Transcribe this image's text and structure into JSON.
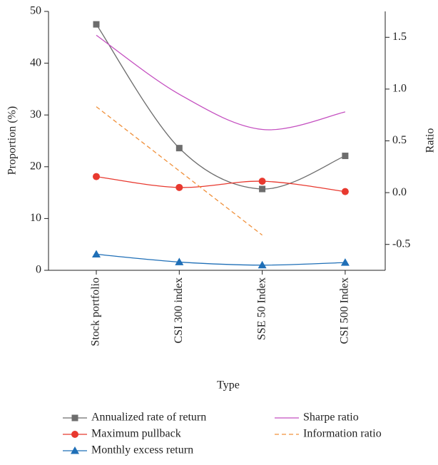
{
  "chart_data": {
    "type": "line",
    "x_label": "Type",
    "y_label": "Proportion (%)",
    "y2_label": "Ratio",
    "categories": [
      "Stock portfolio",
      "CSI 300 index",
      "SSE 50 Index",
      "CSI 500 Index"
    ],
    "ylim": [
      0,
      50
    ],
    "yticks": [
      0,
      10,
      20,
      30,
      40,
      50
    ],
    "y2lim": [
      -0.75,
      1.75
    ],
    "y2ticks": [
      -0.5,
      {
        "value": 0,
        "label": "0.0"
      },
      0.5,
      {
        "value": 1,
        "label": "1.0"
      },
      1.5
    ],
    "series": [
      {
        "name": "Annualized rate of return",
        "color": "#6d6d6d",
        "marker": "square",
        "values": [
          47.5,
          23.6,
          15.7,
          22.1
        ]
      },
      {
        "name": "Maximum pullback",
        "color": "#e8392f",
        "marker": "circle",
        "values": [
          18.1,
          16.0,
          17.2,
          15.2
        ]
      },
      {
        "name": "Monthly excess return",
        "color": "#1f6fb7",
        "marker": "triangle",
        "values": [
          3.1,
          1.6,
          1.0,
          1.5
        ]
      },
      {
        "name": "Sharpe ratio",
        "color": "#c44fc0",
        "axis": "y2",
        "values": [
          1.52,
          0.95,
          0.61,
          0.78
        ]
      },
      {
        "name": "Information ratio",
        "color": "#f0903a",
        "axis": "y2",
        "dashed": true,
        "values": [
          0.83,
          0.21,
          -0.41,
          null
        ]
      }
    ]
  }
}
